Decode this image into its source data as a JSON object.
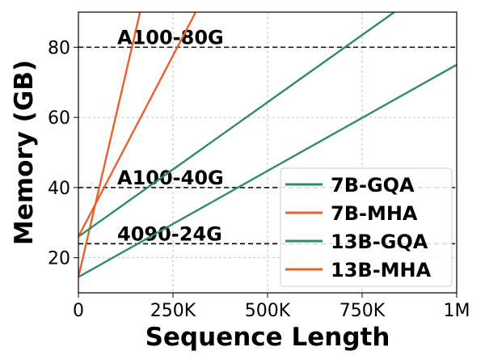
{
  "chart_data": {
    "type": "line",
    "title": "",
    "xlabel": "Sequence Length",
    "ylabel": "Memory (GB)",
    "xlim": [
      0,
      1000000
    ],
    "ylim": [
      10,
      90
    ],
    "grid": true,
    "grid_style": "dashed",
    "legend_position": "lower-right",
    "x_ticks": [
      {
        "value": 0,
        "label": "0"
      },
      {
        "value": 250000,
        "label": "250K"
      },
      {
        "value": 500000,
        "label": "500K"
      },
      {
        "value": 750000,
        "label": "750K"
      },
      {
        "value": 1000000,
        "label": "1M"
      }
    ],
    "y_ticks": [
      {
        "value": 20,
        "label": "20"
      },
      {
        "value": 40,
        "label": "40"
      },
      {
        "value": 60,
        "label": "60"
      },
      {
        "value": 80,
        "label": "80"
      }
    ],
    "series": [
      {
        "name": "7B-GQA",
        "color": "#2e8b6e",
        "x": [
          0,
          1000000
        ],
        "y": [
          14.5,
          75
        ]
      },
      {
        "name": "7B-MHA",
        "color": "#e8612c",
        "x": [
          0,
          163000
        ],
        "y": [
          14.5,
          90
        ]
      },
      {
        "name": "13B-GQA",
        "color": "#2e8b6e",
        "x": [
          0,
          835000
        ],
        "y": [
          26,
          90
        ]
      },
      {
        "name": "13B-MHA",
        "color": "#e8612c",
        "x": [
          0,
          310000
        ],
        "y": [
          26,
          90
        ]
      }
    ],
    "reference_lines": [
      {
        "label": "A100-80G",
        "y": 80,
        "color": "#000000"
      },
      {
        "label": "A100-40G",
        "y": 40,
        "color": "#000000"
      },
      {
        "label": "4090-24G",
        "y": 24,
        "color": "#000000"
      }
    ]
  }
}
